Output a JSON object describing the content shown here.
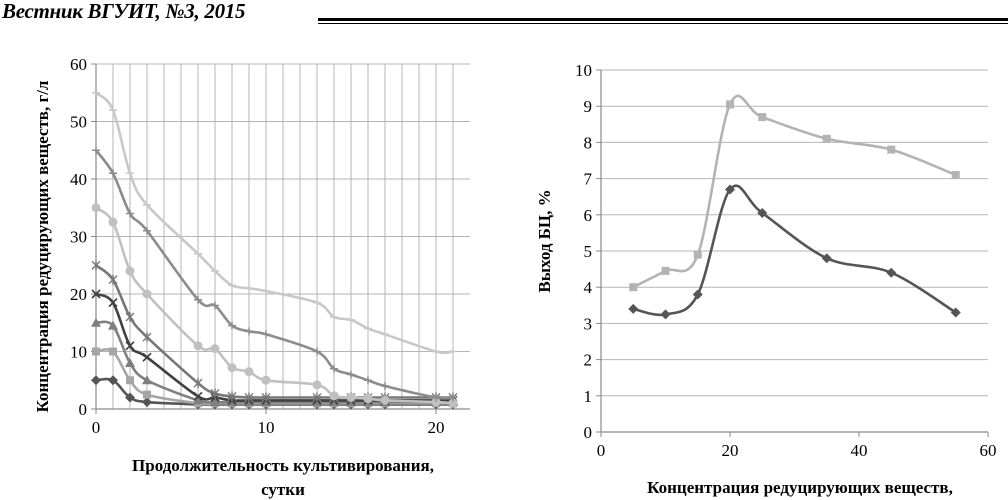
{
  "header": {
    "journal": "Вестник ВГУИТ, №3, 2015"
  },
  "chart_data": [
    {
      "type": "line",
      "title": "",
      "xlabel_lines": [
        "Продолжительность культивирования,",
        "сутки"
      ],
      "ylabel": "Концентрация редуцирующих веществ, г/л",
      "xlim": [
        0,
        22
      ],
      "ylim": [
        0,
        60
      ],
      "x_ticks": [
        "0",
        "10",
        "20"
      ],
      "y_ticks": [
        "0",
        "10",
        "20",
        "30",
        "40",
        "50",
        "60"
      ],
      "grid": true,
      "legend": false,
      "series": [
        {
          "marker": "diamond",
          "color": "#555555",
          "points": [
            [
              0,
              5
            ],
            [
              1,
              5
            ],
            [
              2,
              2
            ],
            [
              3,
              1.2
            ],
            [
              6,
              0.8
            ],
            [
              7,
              0.8
            ],
            [
              8,
              0.8
            ],
            [
              9,
              0.8
            ],
            [
              10,
              0.8
            ],
            [
              13,
              0.8
            ],
            [
              14,
              0.8
            ],
            [
              15,
              0.8
            ],
            [
              16,
              0.8
            ],
            [
              17,
              0.8
            ],
            [
              20,
              0.8
            ],
            [
              21,
              0.8
            ]
          ]
        },
        {
          "marker": "square",
          "color": "#a6a6a6",
          "points": [
            [
              0,
              10
            ],
            [
              1,
              10
            ],
            [
              2,
              5
            ],
            [
              3,
              2.5
            ],
            [
              6,
              1
            ],
            [
              7,
              1
            ],
            [
              8,
              1
            ],
            [
              9,
              1
            ],
            [
              10,
              1
            ],
            [
              13,
              1
            ],
            [
              14,
              1
            ],
            [
              15,
              1
            ],
            [
              16,
              1
            ],
            [
              17,
              1
            ],
            [
              20,
              1
            ],
            [
              21,
              1
            ]
          ]
        },
        {
          "marker": "triangle",
          "color": "#7f7f7f",
          "points": [
            [
              0,
              15
            ],
            [
              1,
              14.5
            ],
            [
              2,
              8
            ],
            [
              3,
              5
            ],
            [
              6,
              1.5
            ],
            [
              7,
              1.2
            ],
            [
              8,
              1.2
            ],
            [
              9,
              1.2
            ],
            [
              10,
              1.2
            ],
            [
              13,
              1.2
            ],
            [
              14,
              1.2
            ],
            [
              15,
              1.2
            ],
            [
              16,
              1.2
            ],
            [
              17,
              1.2
            ],
            [
              20,
              1.2
            ],
            [
              21,
              1.2
            ]
          ]
        },
        {
          "marker": "x",
          "color": "#404040",
          "points": [
            [
              0,
              20
            ],
            [
              1,
              18.5
            ],
            [
              2,
              11
            ],
            [
              3,
              9
            ],
            [
              6,
              2.2
            ],
            [
              7,
              2
            ],
            [
              8,
              1.5
            ],
            [
              9,
              1.5
            ],
            [
              10,
              1.5
            ],
            [
              13,
              1.5
            ],
            [
              14,
              1.5
            ],
            [
              15,
              1.5
            ],
            [
              16,
              1.5
            ],
            [
              17,
              1.5
            ],
            [
              20,
              1.5
            ],
            [
              21,
              1.5
            ]
          ]
        },
        {
          "marker": "star",
          "color": "#777777",
          "points": [
            [
              0,
              25
            ],
            [
              1,
              22.5
            ],
            [
              2,
              16
            ],
            [
              3,
              12.5
            ],
            [
              6,
              4.5
            ],
            [
              7,
              2.7
            ],
            [
              8,
              2.2
            ],
            [
              9,
              2
            ],
            [
              10,
              2
            ],
            [
              13,
              2
            ],
            [
              14,
              2
            ],
            [
              15,
              2
            ],
            [
              16,
              2
            ],
            [
              17,
              2
            ],
            [
              20,
              2
            ],
            [
              21,
              2
            ]
          ]
        },
        {
          "marker": "circle",
          "color": "#c0c0c0",
          "points": [
            [
              0,
              35
            ],
            [
              1,
              32.5
            ],
            [
              2,
              24
            ],
            [
              3,
              20
            ],
            [
              6,
              11
            ],
            [
              7,
              10.5
            ],
            [
              8,
              7.2
            ],
            [
              9,
              6.5
            ],
            [
              10,
              5
            ],
            [
              13,
              4.2
            ],
            [
              14,
              2.3
            ],
            [
              15,
              2
            ],
            [
              16,
              1.8
            ],
            [
              17,
              1.5
            ],
            [
              20,
              1.2
            ],
            [
              21,
              1
            ]
          ]
        },
        {
          "marker": "plus",
          "color": "#8c8c8c",
          "points": [
            [
              0,
              45
            ],
            [
              1,
              41
            ],
            [
              2,
              34
            ],
            [
              3,
              31
            ],
            [
              6,
              19
            ],
            [
              7,
              18
            ],
            [
              8,
              14.5
            ],
            [
              9,
              13.5
            ],
            [
              10,
              13
            ],
            [
              13,
              10
            ],
            [
              14,
              7
            ],
            [
              15,
              6
            ],
            [
              16,
              5
            ],
            [
              17,
              4
            ],
            [
              20,
              2
            ],
            [
              21,
              2
            ]
          ]
        },
        {
          "marker": "dash",
          "color": "#c8c8c8",
          "points": [
            [
              0,
              55
            ],
            [
              1,
              52
            ],
            [
              2,
              41
            ],
            [
              3,
              35.5
            ],
            [
              6,
              27
            ],
            [
              7,
              24
            ],
            [
              8,
              21.5
            ],
            [
              9,
              21
            ],
            [
              10,
              20.5
            ],
            [
              13,
              18.5
            ],
            [
              14,
              16
            ],
            [
              15,
              15.5
            ],
            [
              16,
              14
            ],
            [
              17,
              13
            ],
            [
              20,
              10
            ],
            [
              21,
              10
            ]
          ]
        }
      ]
    },
    {
      "type": "line",
      "title": "",
      "xlabel_lines": [
        "Концентрация редуцирующих веществ,"
      ],
      "ylabel": "Выход БЦ, %",
      "xlim": [
        0,
        60
      ],
      "ylim": [
        0,
        10
      ],
      "x_ticks": [
        "0",
        "20",
        "40",
        "60"
      ],
      "y_ticks": [
        "0",
        "1",
        "2",
        "3",
        "4",
        "5",
        "6",
        "7",
        "8",
        "9",
        "10"
      ],
      "grid": true,
      "legend": false,
      "series": [
        {
          "marker": "diamond",
          "color": "#555555",
          "points": [
            [
              5,
              3.4
            ],
            [
              10,
              3.25
            ],
            [
              15,
              3.8
            ],
            [
              20,
              6.7
            ],
            [
              25,
              6.05
            ],
            [
              35,
              4.8
            ],
            [
              45,
              4.4
            ],
            [
              55,
              3.3
            ]
          ]
        },
        {
          "marker": "square",
          "color": "#b3b3b3",
          "points": [
            [
              5,
              4
            ],
            [
              10,
              4.45
            ],
            [
              15,
              4.9
            ],
            [
              20,
              9.05
            ],
            [
              25,
              8.7
            ],
            [
              35,
              8.1
            ],
            [
              45,
              7.8
            ],
            [
              55,
              7.1
            ]
          ]
        }
      ]
    }
  ]
}
